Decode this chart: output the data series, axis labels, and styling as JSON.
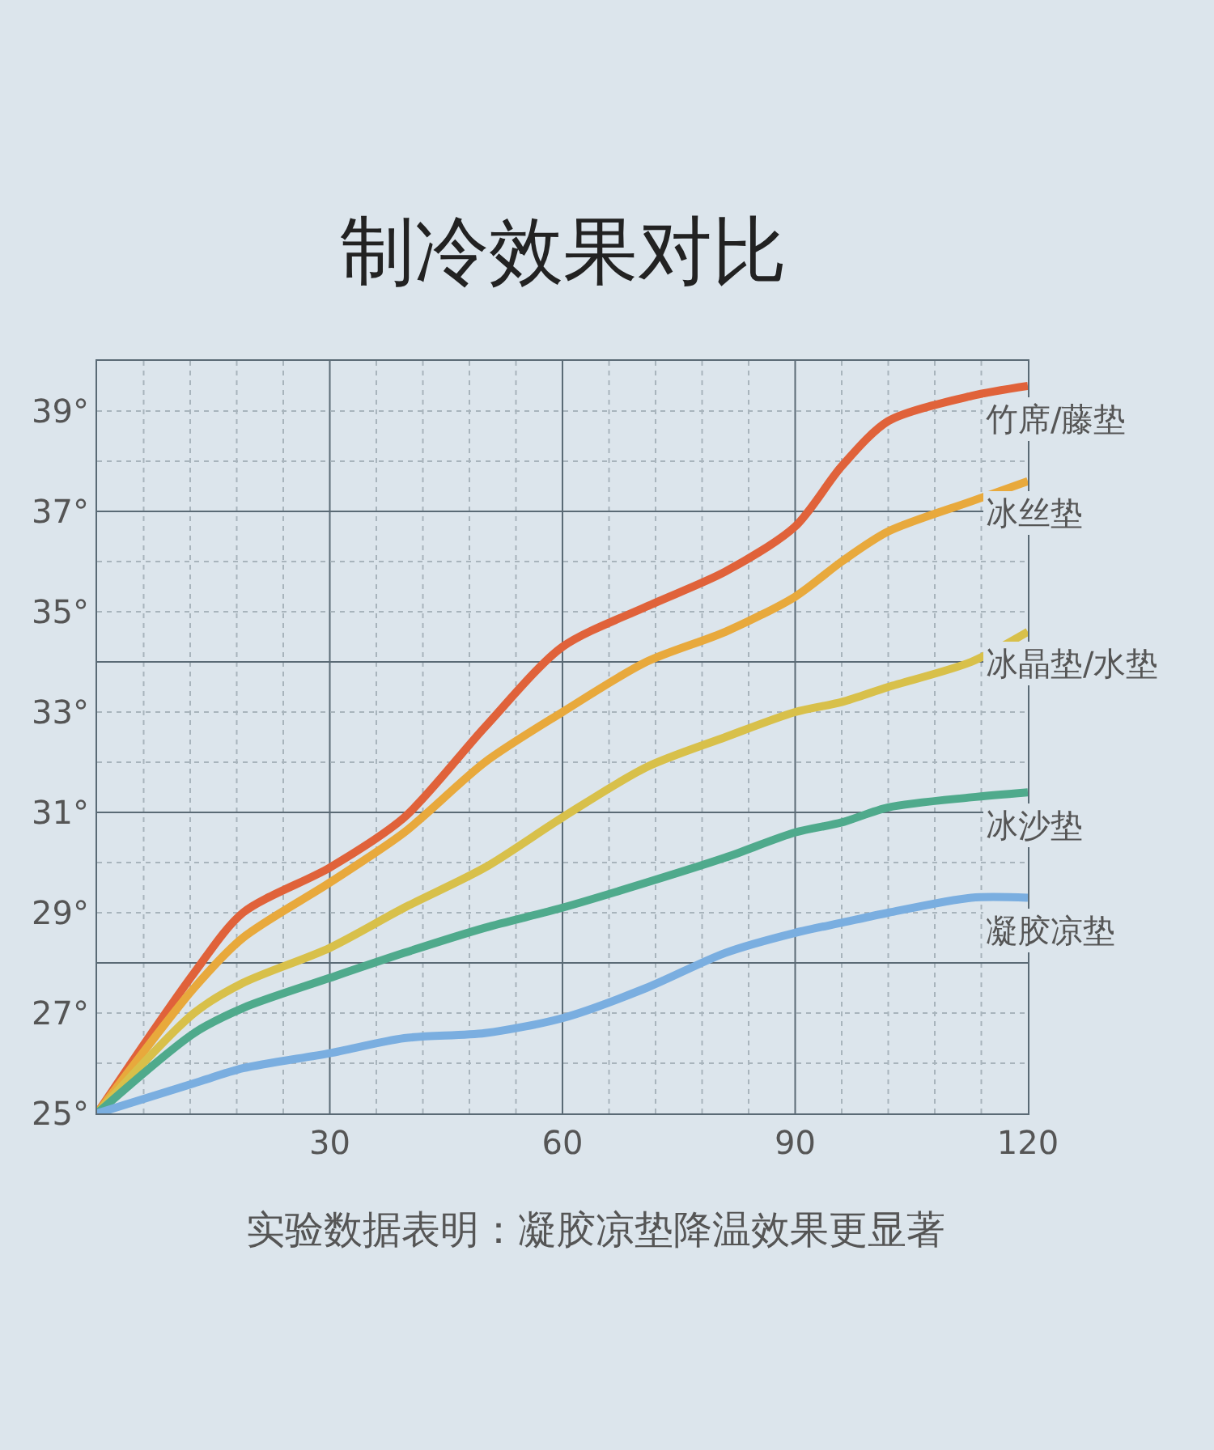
{
  "chart_data": {
    "type": "line",
    "title": "制冷效果对比",
    "x": [
      0,
      12.5,
      18.8,
      30,
      39.6,
      50,
      60,
      70.8,
      81,
      90,
      96,
      102,
      112.7,
      120
    ],
    "series": [
      {
        "name": "竹席/藤垫",
        "color": "#e0623a",
        "values": [
          25,
          27.8,
          29.0,
          29.9,
          30.9,
          32.7,
          34.3,
          35.1,
          35.8,
          36.7,
          37.9,
          38.8,
          39.3,
          39.5
        ]
      },
      {
        "name": "冰丝垫",
        "color": "#e8a93c",
        "values": [
          25,
          27.5,
          28.5,
          29.6,
          30.6,
          32.0,
          33.0,
          34.0,
          34.6,
          35.3,
          36.0,
          36.6,
          37.2,
          37.6
        ]
      },
      {
        "name": "冰晶垫/水垫",
        "color": "#d8c04a",
        "values": [
          25,
          27.0,
          27.6,
          28.3,
          29.1,
          29.9,
          30.9,
          31.9,
          32.5,
          33.0,
          33.2,
          33.5,
          34.0,
          34.6
        ]
      },
      {
        "name": "冰沙垫",
        "color": "#4faa8c",
        "values": [
          25,
          26.6,
          27.1,
          27.7,
          28.2,
          28.7,
          29.1,
          29.6,
          30.1,
          30.6,
          30.8,
          31.1,
          31.3,
          31.4
        ]
      },
      {
        "name": "凝胶凉垫",
        "color": "#7aaee0",
        "values": [
          25,
          25.6,
          25.9,
          26.2,
          26.5,
          26.6,
          26.9,
          27.5,
          28.2,
          28.6,
          28.8,
          29.0,
          29.3,
          29.3
        ]
      }
    ],
    "xlim": [
      0,
      120
    ],
    "xticks": [
      30,
      60,
      90,
      120
    ],
    "ylim": [
      25,
      40
    ],
    "yticks": [
      {
        "value": 25,
        "label": "25°"
      },
      {
        "value": 27,
        "label": "27°"
      },
      {
        "value": 29,
        "label": "29°"
      },
      {
        "value": 31,
        "label": "31°"
      },
      {
        "value": 33,
        "label": "33°"
      },
      {
        "value": 35,
        "label": "35°"
      },
      {
        "value": 37,
        "label": "37°"
      },
      {
        "value": 39,
        "label": "39°"
      }
    ],
    "grid": true,
    "legend": false,
    "marker": "none",
    "line_style": "solid",
    "annotations": [
      "实验数据表明：凝胶凉垫降温效果更显著"
    ]
  }
}
